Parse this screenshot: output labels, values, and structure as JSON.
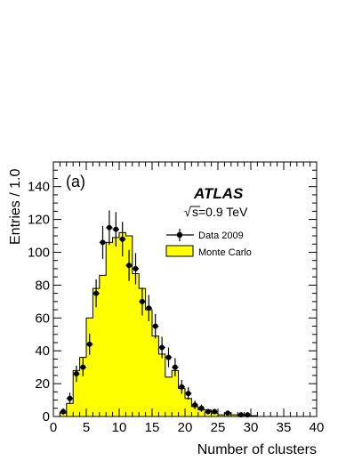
{
  "chart_data": {
    "type": "histogram",
    "panel_label": "(a)",
    "experiment": "ATLAS",
    "energy_prefix": "√",
    "energy_label": "s=0.9 TeV",
    "xlabel": "Number of clusters",
    "ylabel": "Entries / 1.0",
    "xlim": [
      0,
      40
    ],
    "ylim": [
      0,
      155
    ],
    "x_ticks": [
      0,
      5,
      10,
      15,
      20,
      25,
      30,
      35,
      40
    ],
    "y_ticks": [
      0,
      20,
      40,
      60,
      80,
      100,
      120,
      140
    ],
    "grid": false,
    "legend": {
      "placement": "top-right",
      "data_label": "Data 2009",
      "mc_label": "Monte Carlo"
    },
    "colors": {
      "mc_fill": "#ffff00",
      "axes": "#000000"
    },
    "monte_carlo": {
      "bin_edges_start": 0,
      "bin_width": 1,
      "values": [
        0,
        2,
        8,
        28,
        36,
        60,
        78,
        86,
        106,
        109,
        112,
        110,
        87,
        78,
        65,
        49,
        38,
        24,
        28,
        17,
        11,
        6,
        4,
        4,
        2,
        1,
        2,
        1,
        1,
        0.5,
        0.5,
        0,
        0,
        0,
        0,
        0,
        0,
        0,
        0,
        0
      ]
    },
    "data_points": [
      {
        "x": 1.5,
        "y": 3,
        "err": 2
      },
      {
        "x": 2.5,
        "y": 11,
        "err": 3.5
      },
      {
        "x": 3.5,
        "y": 26,
        "err": 5
      },
      {
        "x": 4.5,
        "y": 30,
        "err": 5.5
      },
      {
        "x": 5.5,
        "y": 44,
        "err": 6.5
      },
      {
        "x": 6.5,
        "y": 75,
        "err": 8.5
      },
      {
        "x": 7.5,
        "y": 106,
        "err": 10
      },
      {
        "x": 8.5,
        "y": 115,
        "err": 10.5
      },
      {
        "x": 9.5,
        "y": 114,
        "err": 10.5
      },
      {
        "x": 10.5,
        "y": 108,
        "err": 10.5
      },
      {
        "x": 11.5,
        "y": 92,
        "err": 9.5
      },
      {
        "x": 12.5,
        "y": 90,
        "err": 9.5
      },
      {
        "x": 13.5,
        "y": 70,
        "err": 8.5
      },
      {
        "x": 14.5,
        "y": 66,
        "err": 8
      },
      {
        "x": 15.5,
        "y": 55,
        "err": 7.5
      },
      {
        "x": 16.5,
        "y": 42,
        "err": 6.5
      },
      {
        "x": 17.5,
        "y": 36,
        "err": 6
      },
      {
        "x": 18.5,
        "y": 30,
        "err": 5.5
      },
      {
        "x": 19.5,
        "y": 18,
        "err": 4.2
      },
      {
        "x": 20.5,
        "y": 14,
        "err": 3.8
      },
      {
        "x": 21.5,
        "y": 7,
        "err": 2.6
      },
      {
        "x": 22.5,
        "y": 5,
        "err": 2.2
      },
      {
        "x": 23.5,
        "y": 3,
        "err": 1.7
      },
      {
        "x": 24.5,
        "y": 3,
        "err": 1.7
      },
      {
        "x": 26.5,
        "y": 2,
        "err": 1.4
      },
      {
        "x": 28.5,
        "y": 1,
        "err": 1
      },
      {
        "x": 29.5,
        "y": 1,
        "err": 1
      }
    ]
  }
}
